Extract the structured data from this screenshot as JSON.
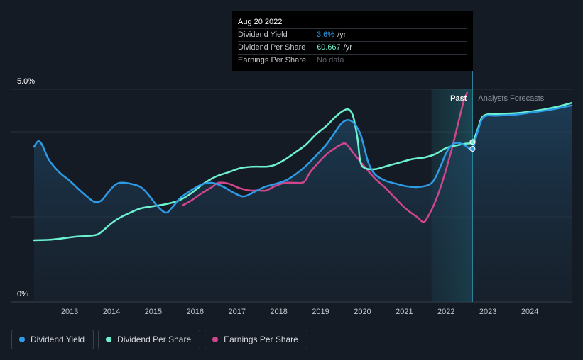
{
  "tooltip": {
    "date": "Aug 20 2022",
    "rows": [
      {
        "label": "Dividend Yield",
        "value": "3.6%",
        "unit": "/yr"
      },
      {
        "label": "Dividend Per Share",
        "value": "€0.667",
        "unit": "/yr"
      },
      {
        "label": "Earnings Per Share",
        "value": "No data",
        "unit": ""
      }
    ]
  },
  "legend": [
    {
      "label": "Dividend Yield",
      "color": "#2d9be6"
    },
    {
      "label": "Dividend Per Share",
      "color": "#6cf2d0"
    },
    {
      "label": "Earnings Per Share",
      "color": "#d0468c"
    }
  ],
  "chart_data": {
    "type": "line",
    "y_tick_labels": [
      "5.0%",
      "0%"
    ],
    "ylim": [
      0,
      5.0
    ],
    "xlim": [
      2012.15,
      2025.0
    ],
    "x_ticks": [
      2013,
      2014,
      2015,
      2016,
      2017,
      2018,
      2019,
      2020,
      2021,
      2022,
      2023,
      2024
    ],
    "gridlines": [
      5.0,
      4.0,
      2.0
    ],
    "regions": {
      "past_label": "Past",
      "forecast_label": "Analysts Forecasts",
      "past_start": 2021.65,
      "divider": 2022.63
    },
    "series": [
      {
        "name": "Dividend Yield",
        "color": "#2d9be6",
        "points": [
          [
            2012.15,
            3.65
          ],
          [
            2012.25,
            3.78
          ],
          [
            2012.35,
            3.68
          ],
          [
            2012.5,
            3.35
          ],
          [
            2012.75,
            3.05
          ],
          [
            2013.0,
            2.85
          ],
          [
            2013.25,
            2.62
          ],
          [
            2013.45,
            2.45
          ],
          [
            2013.6,
            2.35
          ],
          [
            2013.75,
            2.38
          ],
          [
            2013.9,
            2.55
          ],
          [
            2014.05,
            2.72
          ],
          [
            2014.2,
            2.8
          ],
          [
            2014.45,
            2.78
          ],
          [
            2014.7,
            2.7
          ],
          [
            2014.9,
            2.5
          ],
          [
            2015.1,
            2.25
          ],
          [
            2015.3,
            2.1
          ],
          [
            2015.45,
            2.22
          ],
          [
            2015.65,
            2.45
          ],
          [
            2015.9,
            2.62
          ],
          [
            2016.15,
            2.76
          ],
          [
            2016.4,
            2.8
          ],
          [
            2016.65,
            2.72
          ],
          [
            2016.9,
            2.58
          ],
          [
            2017.15,
            2.48
          ],
          [
            2017.4,
            2.58
          ],
          [
            2017.65,
            2.7
          ],
          [
            2017.9,
            2.77
          ],
          [
            2018.15,
            2.85
          ],
          [
            2018.4,
            3.0
          ],
          [
            2018.65,
            3.2
          ],
          [
            2018.9,
            3.45
          ],
          [
            2019.15,
            3.72
          ],
          [
            2019.35,
            4.0
          ],
          [
            2019.5,
            4.2
          ],
          [
            2019.65,
            4.28
          ],
          [
            2019.8,
            4.2
          ],
          [
            2019.95,
            3.95
          ],
          [
            2020.05,
            3.6
          ],
          [
            2020.15,
            3.25
          ],
          [
            2020.3,
            3.0
          ],
          [
            2020.55,
            2.85
          ],
          [
            2020.8,
            2.78
          ],
          [
            2021.05,
            2.72
          ],
          [
            2021.3,
            2.7
          ],
          [
            2021.55,
            2.74
          ],
          [
            2021.7,
            2.85
          ],
          [
            2021.85,
            3.15
          ],
          [
            2022.0,
            3.5
          ],
          [
            2022.15,
            3.7
          ],
          [
            2022.3,
            3.74
          ],
          [
            2022.45,
            3.68
          ],
          [
            2022.63,
            3.6
          ],
          [
            2022.75,
            4.0
          ],
          [
            2022.9,
            4.35
          ],
          [
            2023.2,
            4.38
          ],
          [
            2023.6,
            4.4
          ],
          [
            2024.0,
            4.45
          ],
          [
            2024.5,
            4.52
          ],
          [
            2025.0,
            4.62
          ]
        ]
      },
      {
        "name": "Dividend Per Share",
        "color": "#6cf2d0",
        "points": [
          [
            2012.15,
            1.45
          ],
          [
            2012.5,
            1.46
          ],
          [
            2012.8,
            1.49
          ],
          [
            2013.1,
            1.53
          ],
          [
            2013.4,
            1.55
          ],
          [
            2013.65,
            1.58
          ],
          [
            2013.8,
            1.68
          ],
          [
            2014.0,
            1.85
          ],
          [
            2014.2,
            1.98
          ],
          [
            2014.45,
            2.1
          ],
          [
            2014.7,
            2.2
          ],
          [
            2015.0,
            2.25
          ],
          [
            2015.3,
            2.3
          ],
          [
            2015.6,
            2.38
          ],
          [
            2015.9,
            2.55
          ],
          [
            2016.2,
            2.78
          ],
          [
            2016.5,
            2.95
          ],
          [
            2016.8,
            3.05
          ],
          [
            2017.1,
            3.15
          ],
          [
            2017.4,
            3.18
          ],
          [
            2017.7,
            3.18
          ],
          [
            2017.9,
            3.22
          ],
          [
            2018.15,
            3.35
          ],
          [
            2018.4,
            3.52
          ],
          [
            2018.65,
            3.7
          ],
          [
            2018.9,
            3.95
          ],
          [
            2019.15,
            4.15
          ],
          [
            2019.35,
            4.35
          ],
          [
            2019.55,
            4.5
          ],
          [
            2019.68,
            4.52
          ],
          [
            2019.78,
            4.35
          ],
          [
            2019.88,
            3.85
          ],
          [
            2019.95,
            3.3
          ],
          [
            2020.05,
            3.15
          ],
          [
            2020.3,
            3.12
          ],
          [
            2020.6,
            3.2
          ],
          [
            2020.9,
            3.28
          ],
          [
            2021.2,
            3.36
          ],
          [
            2021.5,
            3.4
          ],
          [
            2021.75,
            3.48
          ],
          [
            2022.0,
            3.62
          ],
          [
            2022.25,
            3.68
          ],
          [
            2022.45,
            3.72
          ],
          [
            2022.63,
            3.76
          ],
          [
            2022.75,
            4.05
          ],
          [
            2022.9,
            4.38
          ],
          [
            2023.3,
            4.42
          ],
          [
            2023.8,
            4.45
          ],
          [
            2024.3,
            4.52
          ],
          [
            2024.7,
            4.6
          ],
          [
            2025.0,
            4.68
          ]
        ]
      },
      {
        "name": "Earnings Per Share",
        "color": "#d0468c",
        "points": [
          [
            2015.7,
            2.27
          ],
          [
            2015.9,
            2.38
          ],
          [
            2016.15,
            2.55
          ],
          [
            2016.4,
            2.7
          ],
          [
            2016.55,
            2.8
          ],
          [
            2016.8,
            2.78
          ],
          [
            2017.05,
            2.68
          ],
          [
            2017.3,
            2.62
          ],
          [
            2017.5,
            2.62
          ],
          [
            2017.7,
            2.62
          ],
          [
            2017.9,
            2.72
          ],
          [
            2018.15,
            2.8
          ],
          [
            2018.4,
            2.8
          ],
          [
            2018.6,
            2.82
          ],
          [
            2018.75,
            3.05
          ],
          [
            2018.95,
            3.28
          ],
          [
            2019.15,
            3.48
          ],
          [
            2019.35,
            3.62
          ],
          [
            2019.45,
            3.68
          ],
          [
            2019.6,
            3.72
          ],
          [
            2019.8,
            3.48
          ],
          [
            2020.05,
            3.18
          ],
          [
            2020.3,
            2.9
          ],
          [
            2020.55,
            2.68
          ],
          [
            2020.8,
            2.42
          ],
          [
            2021.05,
            2.18
          ],
          [
            2021.3,
            2.0
          ],
          [
            2021.45,
            1.88
          ],
          [
            2021.55,
            1.98
          ],
          [
            2021.75,
            2.38
          ],
          [
            2021.95,
            2.95
          ],
          [
            2022.15,
            3.65
          ],
          [
            2022.3,
            4.25
          ],
          [
            2022.42,
            4.72
          ],
          [
            2022.5,
            4.92
          ]
        ]
      }
    ]
  }
}
